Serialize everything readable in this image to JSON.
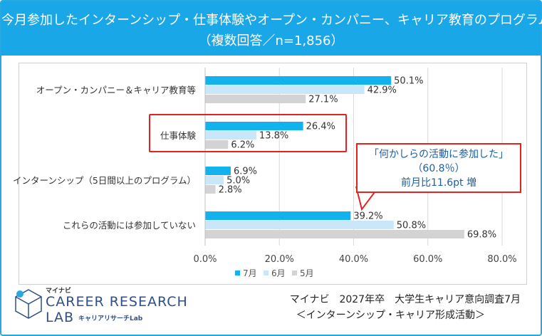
{
  "header": {
    "title_line1": "今月参加したインターンシップ・仕事体験やオープン・カンパニー、キャリア教育のプログラム",
    "title_line2": "（複数回答／n=1,856）"
  },
  "callout": {
    "line1": "「何かしらの活動に参加した」",
    "line2": "（60.8％）",
    "line3": "前月比11.6pt 増"
  },
  "logo": {
    "brand": "マイナビ",
    "line1": "CAREER RESEARCH",
    "line2": "LAB",
    "line3": "キャリアリサーチLab"
  },
  "source": {
    "line1": "マイナビ　2027年卒　大学生キャリア意向調査7月",
    "line2": "＜インターンシップ・キャリア形成活動＞"
  },
  "colors": {
    "header_bg": "#1aa7e8",
    "jul": "#12b2ef",
    "jun": "#c9e7f8",
    "may": "#d3d3d3",
    "highlight": "#e32222",
    "callout_text": "#1a5fa8"
  },
  "chart_data": {
    "type": "bar",
    "orientation": "horizontal",
    "categories": [
      "オープン・カンパニー＆キャリア教育等",
      "仕事体験",
      "インターンシップ（5日間以上のプログラム）",
      "これらの活動には参加していない"
    ],
    "series": [
      {
        "name": "7月",
        "values": [
          50.1,
          26.4,
          6.9,
          39.2
        ]
      },
      {
        "name": "6月",
        "values": [
          42.9,
          13.8,
          5.0,
          50.8
        ]
      },
      {
        "name": "5月",
        "values": [
          27.1,
          6.2,
          2.8,
          69.8
        ]
      }
    ],
    "xlim": [
      0,
      80
    ],
    "xticks": [
      "0.0%",
      "20.0%",
      "40.0%",
      "60.0%",
      "80.0%"
    ],
    "value_suffix": "%",
    "grid": true,
    "legend_position": "bottom"
  }
}
